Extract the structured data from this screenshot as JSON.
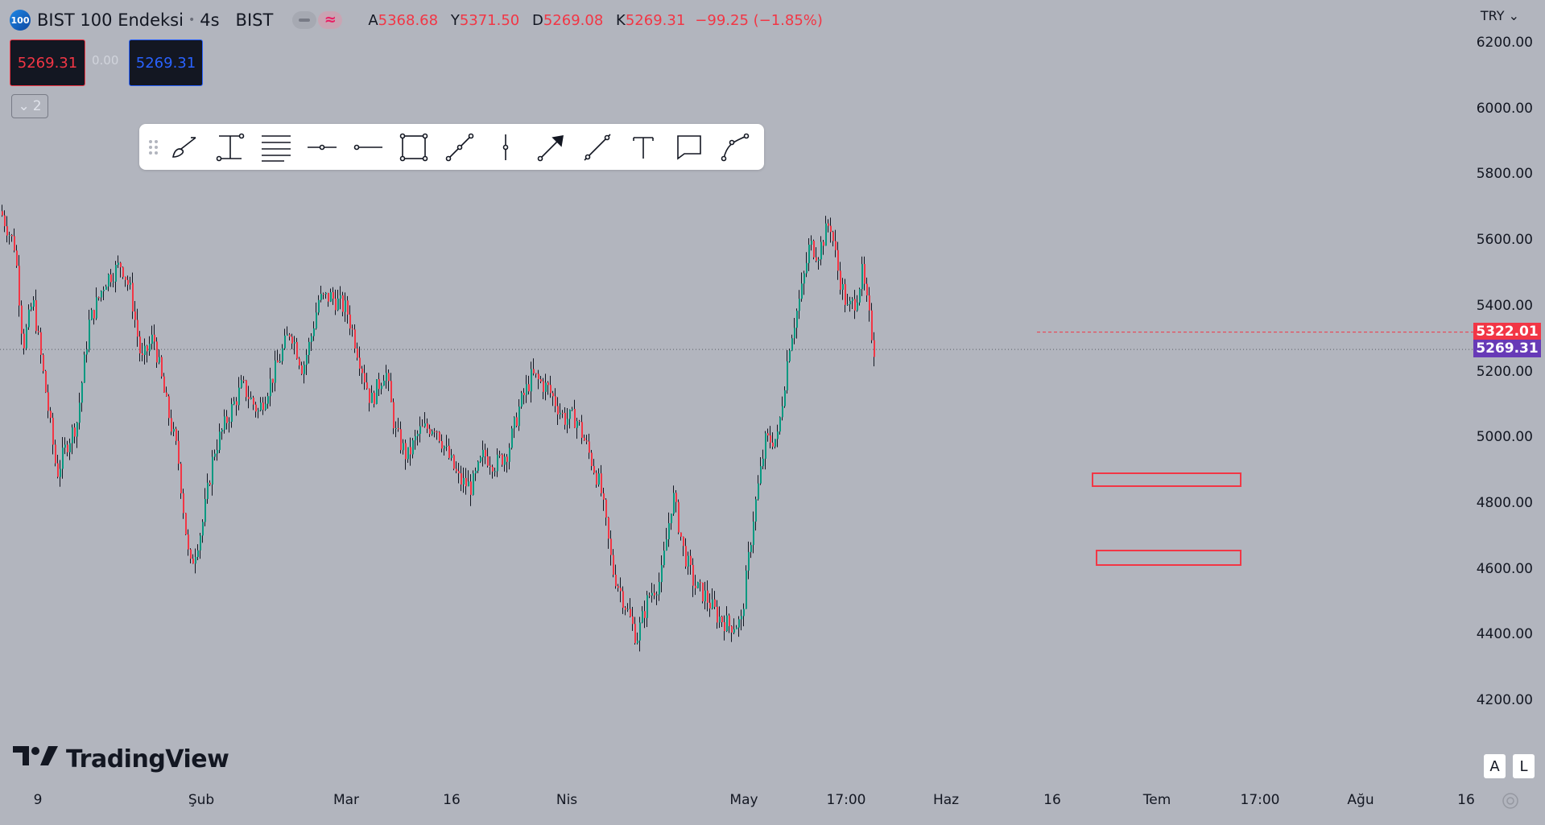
{
  "header": {
    "symbol_badge": "100",
    "symbol_name": "BIST 100 Endeksi",
    "interval": "4s",
    "exchange": "BIST",
    "ohlc": {
      "o_label": "A",
      "o_value": "5368.68",
      "h_label": "Y",
      "h_value": "5371.50",
      "l_label": "D",
      "l_value": "5269.08",
      "c_label": "K",
      "c_value": "5269.31",
      "change": "−99.25 (−1.85%)"
    }
  },
  "trade": {
    "sell_price": "5269.31",
    "spread": "0.00",
    "buy_price": "5269.31"
  },
  "indicators_toggle": {
    "count": "2"
  },
  "toolbar": {
    "tools": [
      "brush-icon",
      "measure-icon",
      "fib-retracement-icon",
      "horizontal-ray-icon",
      "horizontal-line-icon",
      "rectangle-icon",
      "trend-line-icon",
      "vertical-line-icon",
      "arrow-icon",
      "ray-icon",
      "text-icon",
      "callout-icon",
      "path-icon"
    ]
  },
  "currency": "TRY",
  "price_tags": {
    "prev_close": "5322.01",
    "last": "5269.31"
  },
  "buttons": {
    "auto": "A",
    "log": "L"
  },
  "branding": "TradingView",
  "colors": {
    "up": "#089981",
    "down": "#f23645",
    "background": "#b2b5be",
    "last_price_tag": "#673ab7"
  },
  "chart_data": {
    "type": "candlestick",
    "title": "BIST 100 Endeksi · 4s · BIST",
    "ylim": [
      4080,
      6260
    ],
    "yticks": [
      "6200.00",
      "6000.00",
      "5800.00",
      "5600.00",
      "5400.00",
      "5200.00",
      "5000.00",
      "4800.00",
      "4600.00",
      "4400.00",
      "4200.00"
    ],
    "xticks": [
      "9",
      "Şub",
      "Mar",
      "16",
      "Nis",
      "May",
      "17:00",
      "Haz",
      "16",
      "Tem",
      "17:00",
      "Ağu",
      "16"
    ],
    "series": [
      {
        "name": "BIST 100",
        "anchors": [
          [
            0,
            5690
          ],
          [
            18,
            5580
          ],
          [
            28,
            5280
          ],
          [
            40,
            5420
          ],
          [
            55,
            5160
          ],
          [
            70,
            4890
          ],
          [
            82,
            4980
          ],
          [
            95,
            5050
          ],
          [
            110,
            5350
          ],
          [
            130,
            5480
          ],
          [
            150,
            5530
          ],
          [
            162,
            5440
          ],
          [
            175,
            5230
          ],
          [
            190,
            5310
          ],
          [
            205,
            5110
          ],
          [
            220,
            4950
          ],
          [
            235,
            4600
          ],
          [
            250,
            4730
          ],
          [
            265,
            4960
          ],
          [
            280,
            5050
          ],
          [
            300,
            5160
          ],
          [
            320,
            5080
          ],
          [
            340,
            5200
          ],
          [
            360,
            5330
          ],
          [
            375,
            5210
          ],
          [
            385,
            5300
          ],
          [
            395,
            5420
          ],
          [
            410,
            5430
          ],
          [
            430,
            5390
          ],
          [
            445,
            5250
          ],
          [
            460,
            5110
          ],
          [
            478,
            5210
          ],
          [
            490,
            5020
          ],
          [
            505,
            4940
          ],
          [
            520,
            5020
          ],
          [
            540,
            5040
          ],
          [
            555,
            4950
          ],
          [
            570,
            4870
          ],
          [
            585,
            4850
          ],
          [
            600,
            4950
          ],
          [
            615,
            4920
          ],
          [
            630,
            4960
          ],
          [
            645,
            5100
          ],
          [
            660,
            5190
          ],
          [
            680,
            5150
          ],
          [
            700,
            5060
          ],
          [
            715,
            5060
          ],
          [
            730,
            4960
          ],
          [
            745,
            4850
          ],
          [
            760,
            4600
          ],
          [
            775,
            4500
          ],
          [
            790,
            4390
          ],
          [
            805,
            4520
          ],
          [
            820,
            4570
          ],
          [
            835,
            4830
          ],
          [
            848,
            4660
          ],
          [
            862,
            4550
          ],
          [
            875,
            4520
          ],
          [
            890,
            4460
          ],
          [
            905,
            4430
          ],
          [
            920,
            4440
          ],
          [
            935,
            4760
          ],
          [
            950,
            4990
          ],
          [
            965,
            5000
          ],
          [
            980,
            5290
          ],
          [
            995,
            5450
          ],
          [
            1005,
            5590
          ],
          [
            1015,
            5560
          ],
          [
            1030,
            5660
          ],
          [
            1040,
            5510
          ],
          [
            1052,
            5390
          ],
          [
            1062,
            5420
          ],
          [
            1070,
            5500
          ],
          [
            1085,
            5270
          ]
        ]
      }
    ],
    "prev_close_line": 5322.01,
    "last_price": 5269.31
  }
}
